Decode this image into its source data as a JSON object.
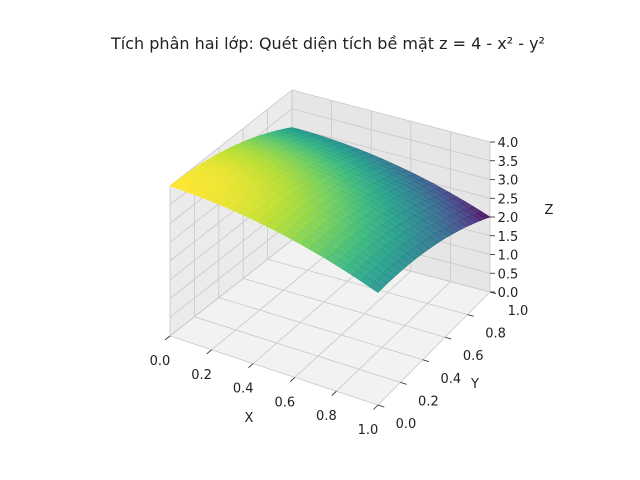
{
  "chart_data": {
    "type": "surface",
    "title": "Tích phân hai lớp: Quét diện tích bề mặt z = 4 - x² - y²",
    "function": "z = 4 - x² - y²",
    "xlabel": "X",
    "ylabel": "Y",
    "zlabel": "Z",
    "xlim": [
      0,
      1
    ],
    "ylim": [
      0,
      1
    ],
    "zlim": [
      0,
      4
    ],
    "x_ticks": [
      "0.0",
      "0.2",
      "0.4",
      "0.6",
      "0.8",
      "1.0"
    ],
    "y_ticks": [
      "0.0",
      "0.2",
      "0.4",
      "0.6",
      "0.8",
      "1.0"
    ],
    "z_ticks": [
      "0.0",
      "0.5",
      "1.0",
      "1.5",
      "2.0",
      "2.5",
      "3.0",
      "3.5",
      "4.0"
    ],
    "grid": true,
    "colormap": "viridis",
    "surface_corners": [
      {
        "x": 0,
        "y": 0,
        "z": 4
      },
      {
        "x": 1,
        "y": 0,
        "z": 3
      },
      {
        "x": 0,
        "y": 1,
        "z": 3
      },
      {
        "x": 1,
        "y": 1,
        "z": 2
      }
    ]
  }
}
